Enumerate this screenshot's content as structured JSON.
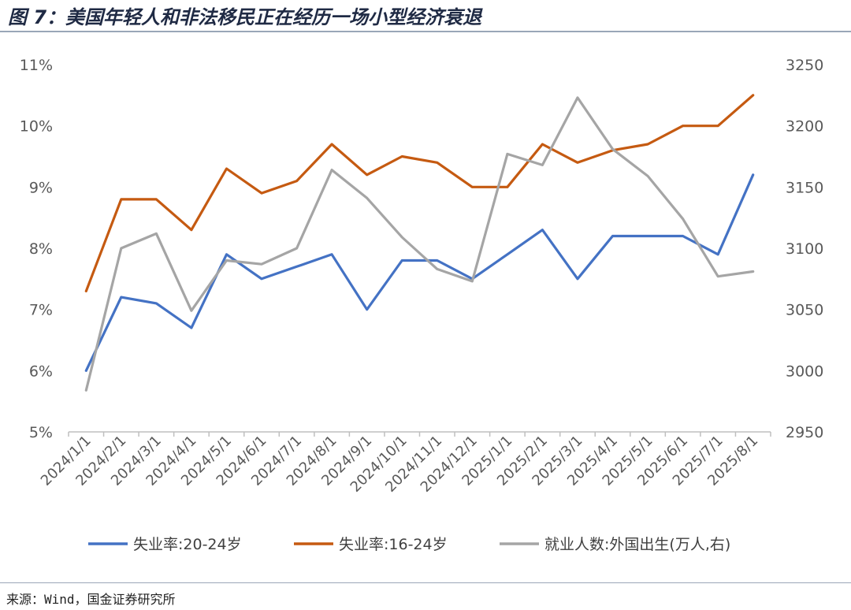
{
  "figure": {
    "title": "图 7：美国年轻人和非法移民正在经历一场小型经济衰退",
    "source": "来源：Wind，国金证券研究所"
  },
  "chart_data": {
    "type": "line",
    "categories": [
      "2024/1/1",
      "2024/2/1",
      "2024/3/1",
      "2024/4/1",
      "2024/5/1",
      "2024/6/1",
      "2024/7/1",
      "2024/8/1",
      "2024/9/1",
      "2024/10/1",
      "2024/11/1",
      "2024/12/1",
      "2025/1/1",
      "2025/2/1",
      "2025/3/1",
      "2025/4/1",
      "2025/5/1",
      "2025/6/1",
      "2025/7/1",
      "2025/8/1"
    ],
    "y_left": {
      "ylim": [
        5,
        11
      ],
      "ticks": [
        5,
        6,
        7,
        8,
        9,
        10,
        11
      ],
      "tick_labels": [
        "5%",
        "6%",
        "7%",
        "8%",
        "9%",
        "10%",
        "11%"
      ]
    },
    "y_right": {
      "ylim": [
        2950,
        3250
      ],
      "ticks": [
        2950,
        3000,
        3050,
        3100,
        3150,
        3200,
        3250
      ],
      "tick_labels": [
        "2950",
        "3000",
        "3050",
        "3100",
        "3150",
        "3200",
        "3250"
      ]
    },
    "grid": false,
    "legend_position": "bottom",
    "series": [
      {
        "name": "失业率:20-24岁",
        "axis": "left",
        "color": "#4472c4",
        "values": [
          6.0,
          7.2,
          7.1,
          6.7,
          7.9,
          7.5,
          7.7,
          7.9,
          7.0,
          7.8,
          7.8,
          7.5,
          7.9,
          8.3,
          7.5,
          8.2,
          8.2,
          8.2,
          7.9,
          9.2
        ]
      },
      {
        "name": "失业率:16-24岁",
        "axis": "left",
        "color": "#c55a11",
        "values": [
          7.3,
          8.8,
          8.8,
          8.3,
          9.3,
          8.9,
          9.1,
          9.7,
          9.2,
          9.5,
          9.4,
          9.0,
          9.0,
          9.7,
          9.4,
          9.6,
          9.7,
          10.0,
          10.0,
          10.5
        ]
      },
      {
        "name": "就业人数:外国出生(万人,右)",
        "axis": "right",
        "color": "#a5a5a5",
        "values": [
          2984,
          3100,
          3112,
          3049,
          3090,
          3087,
          3100,
          3164,
          3141,
          3109,
          3083,
          3073,
          3177,
          3168,
          3223,
          3181,
          3159,
          3124,
          3077,
          3081
        ]
      }
    ]
  }
}
